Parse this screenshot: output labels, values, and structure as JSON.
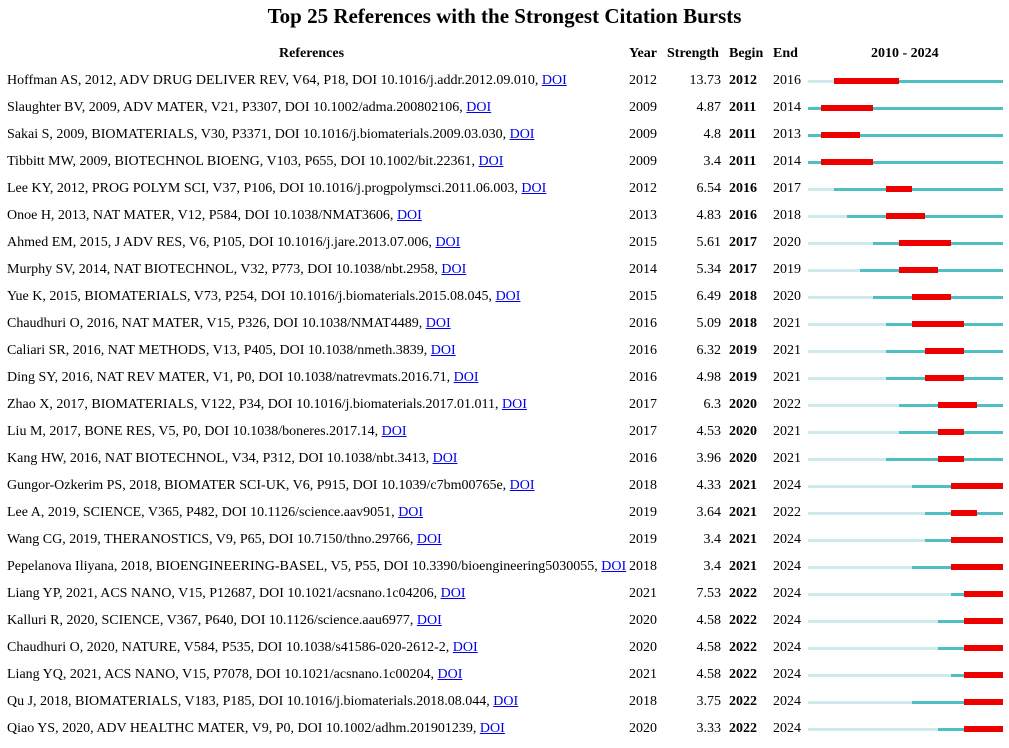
{
  "title": "Top 25 References with the Strongest Citation Bursts",
  "headers": {
    "references": "References",
    "year": "Year",
    "strength": "Strength",
    "begin": "Begin",
    "end": "End",
    "range": "2010 - 2024"
  },
  "colors": {
    "pre": "#cfe9ec",
    "active": "#4fbfc3",
    "burst": "#ee0000",
    "link": "#0000ee"
  },
  "chart_data": {
    "type": "table",
    "title": "Top 25 References with the Strongest Citation Bursts",
    "timeline": [
      2010,
      2024
    ],
    "columns": [
      "References",
      "Year",
      "Strength",
      "Begin",
      "End",
      "2010 - 2024"
    ],
    "rows": [
      {
        "ref": "Hoffman AS, 2012, ADV DRUG DELIVER REV, V64, P18, DOI 10.1016/j.addr.2012.09.010,",
        "doi": "DOI",
        "year": "2012",
        "strength": "13.73",
        "begin": "2012",
        "end": "2016"
      },
      {
        "ref": "Slaughter BV, 2009, ADV MATER, V21, P3307, DOI 10.1002/adma.200802106,",
        "doi": "DOI",
        "year": "2009",
        "strength": "4.87",
        "begin": "2011",
        "end": "2014"
      },
      {
        "ref": "Sakai S, 2009, BIOMATERIALS, V30, P3371, DOI 10.1016/j.biomaterials.2009.03.030,",
        "doi": "DOI",
        "year": "2009",
        "strength": "4.8",
        "begin": "2011",
        "end": "2013"
      },
      {
        "ref": "Tibbitt MW, 2009, BIOTECHNOL BIOENG, V103, P655, DOI 10.1002/bit.22361,",
        "doi": "DOI",
        "year": "2009",
        "strength": "3.4",
        "begin": "2011",
        "end": "2014"
      },
      {
        "ref": "Lee KY, 2012, PROG POLYM SCI, V37, P106, DOI 10.1016/j.progpolymsci.2011.06.003,",
        "doi": "DOI",
        "year": "2012",
        "strength": "6.54",
        "begin": "2016",
        "end": "2017"
      },
      {
        "ref": "Onoe H, 2013, NAT MATER, V12, P584, DOI 10.1038/NMAT3606,",
        "doi": "DOI",
        "year": "2013",
        "strength": "4.83",
        "begin": "2016",
        "end": "2018"
      },
      {
        "ref": "Ahmed EM, 2015, J ADV RES, V6, P105, DOI 10.1016/j.jare.2013.07.006,",
        "doi": "DOI",
        "year": "2015",
        "strength": "5.61",
        "begin": "2017",
        "end": "2020"
      },
      {
        "ref": "Murphy SV, 2014, NAT BIOTECHNOL, V32, P773, DOI 10.1038/nbt.2958,",
        "doi": "DOI",
        "year": "2014",
        "strength": "5.34",
        "begin": "2017",
        "end": "2019"
      },
      {
        "ref": "Yue K, 2015, BIOMATERIALS, V73, P254, DOI 10.1016/j.biomaterials.2015.08.045,",
        "doi": "DOI",
        "year": "2015",
        "strength": "6.49",
        "begin": "2018",
        "end": "2020"
      },
      {
        "ref": "Chaudhuri O, 2016, NAT MATER, V15, P326, DOI 10.1038/NMAT4489,",
        "doi": "DOI",
        "year": "2016",
        "strength": "5.09",
        "begin": "2018",
        "end": "2021"
      },
      {
        "ref": "Caliari SR, 2016, NAT METHODS, V13, P405, DOI 10.1038/nmeth.3839,",
        "doi": "DOI",
        "year": "2016",
        "strength": "6.32",
        "begin": "2019",
        "end": "2021"
      },
      {
        "ref": "Ding SY, 2016, NAT REV MATER, V1, P0, DOI 10.1038/natrevmats.2016.71,",
        "doi": "DOI",
        "year": "2016",
        "strength": "4.98",
        "begin": "2019",
        "end": "2021"
      },
      {
        "ref": "Zhao X, 2017, BIOMATERIALS, V122, P34, DOI 10.1016/j.biomaterials.2017.01.011,",
        "doi": "DOI",
        "year": "2017",
        "strength": "6.3",
        "begin": "2020",
        "end": "2022"
      },
      {
        "ref": "Liu M, 2017, BONE RES, V5, P0, DOI 10.1038/boneres.2017.14,",
        "doi": "DOI",
        "year": "2017",
        "strength": "4.53",
        "begin": "2020",
        "end": "2021"
      },
      {
        "ref": "Kang HW, 2016, NAT BIOTECHNOL, V34, P312, DOI 10.1038/nbt.3413,",
        "doi": "DOI",
        "year": "2016",
        "strength": "3.96",
        "begin": "2020",
        "end": "2021"
      },
      {
        "ref": "Gungor-Ozkerim PS, 2018, BIOMATER SCI-UK, V6, P915, DOI 10.1039/c7bm00765e,",
        "doi": "DOI",
        "year": "2018",
        "strength": "4.33",
        "begin": "2021",
        "end": "2024"
      },
      {
        "ref": "Lee A, 2019, SCIENCE, V365, P482, DOI 10.1126/science.aav9051,",
        "doi": "DOI",
        "year": "2019",
        "strength": "3.64",
        "begin": "2021",
        "end": "2022"
      },
      {
        "ref": "Wang CG, 2019, THERANOSTICS, V9, P65, DOI 10.7150/thno.29766,",
        "doi": "DOI",
        "year": "2019",
        "strength": "3.4",
        "begin": "2021",
        "end": "2024"
      },
      {
        "ref": "Pepelanova Iliyana, 2018, BIOENGINEERING-BASEL, V5, P55, DOI 10.3390/bioengineering5030055,",
        "doi": "DOI",
        "year": "2018",
        "strength": "3.4",
        "begin": "2021",
        "end": "2024"
      },
      {
        "ref": "Liang YP, 2021, ACS NANO, V15, P12687, DOI 10.1021/acsnano.1c04206,",
        "doi": "DOI",
        "year": "2021",
        "strength": "7.53",
        "begin": "2022",
        "end": "2024"
      },
      {
        "ref": "Kalluri R, 2020, SCIENCE, V367, P640, DOI 10.1126/science.aau6977,",
        "doi": "DOI",
        "year": "2020",
        "strength": "4.58",
        "begin": "2022",
        "end": "2024"
      },
      {
        "ref": "Chaudhuri O, 2020, NATURE, V584, P535, DOI 10.1038/s41586-020-2612-2,",
        "doi": "DOI",
        "year": "2020",
        "strength": "4.58",
        "begin": "2022",
        "end": "2024"
      },
      {
        "ref": "Liang YQ, 2021, ACS NANO, V15, P7078, DOI 10.1021/acsnano.1c00204,",
        "doi": "DOI",
        "year": "2021",
        "strength": "4.58",
        "begin": "2022",
        "end": "2024"
      },
      {
        "ref": "Qu J, 2018, BIOMATERIALS, V183, P185, DOI 10.1016/j.biomaterials.2018.08.044,",
        "doi": "DOI",
        "year": "2018",
        "strength": "3.75",
        "begin": "2022",
        "end": "2024"
      },
      {
        "ref": "Qiao YS, 2020, ADV HEALTHC MATER, V9, P0, DOI 10.1002/adhm.201901239,",
        "doi": "DOI",
        "year": "2020",
        "strength": "3.33",
        "begin": "2022",
        "end": "2024"
      }
    ]
  }
}
